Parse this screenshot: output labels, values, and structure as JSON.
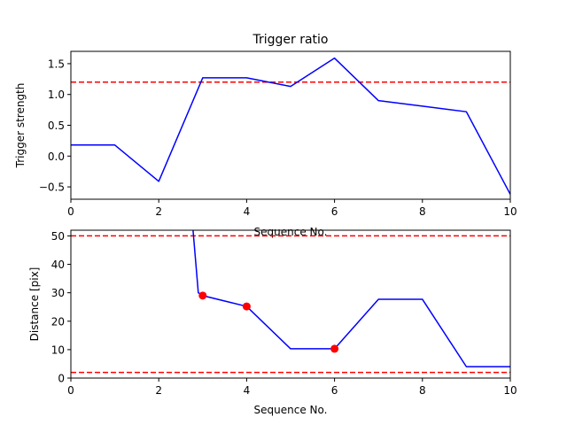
{
  "colors": {
    "line": "#0000ff",
    "threshold": "#ff0000",
    "marker": "#ff0000",
    "axes": "#000000",
    "background": "#ffffff"
  },
  "chart_data": [
    {
      "type": "line",
      "title": "Trigger ratio",
      "xlabel": "Sequence No.",
      "ylabel": "Trigger strength",
      "xlim": [
        0,
        10
      ],
      "ylim": [
        -0.7,
        1.7
      ],
      "xticks": [
        0,
        2,
        4,
        6,
        8,
        10
      ],
      "yticks": [
        -0.5,
        0.0,
        0.5,
        1.0,
        1.5
      ],
      "ytick_labels": [
        "−0.5",
        "0.0",
        "0.5",
        "1.0",
        "1.5"
      ],
      "grid": false,
      "series": [
        {
          "x": [
            0,
            1,
            2,
            3,
            4,
            5,
            6,
            7,
            8,
            9,
            10
          ],
          "y": [
            0.18,
            0.18,
            -0.41,
            1.27,
            1.27,
            1.13,
            1.59,
            0.9,
            0.81,
            0.72,
            -0.62
          ]
        }
      ],
      "hlines": [
        1.2
      ]
    },
    {
      "type": "line",
      "title": "",
      "xlabel": "Sequence No.",
      "ylabel": "Distance [pix]",
      "xlim": [
        0,
        10
      ],
      "ylim": [
        0,
        52
      ],
      "xticks": [
        0,
        2,
        4,
        6,
        8,
        10
      ],
      "yticks": [
        0,
        10,
        20,
        30,
        40,
        50
      ],
      "ytick_labels": [
        "0",
        "10",
        "20",
        "30",
        "40",
        "50"
      ],
      "grid": false,
      "series": [
        {
          "x": [
            2.78,
            2.9,
            3,
            4,
            5,
            6,
            7,
            8,
            9,
            10
          ],
          "y": [
            52,
            30,
            29,
            25.2,
            10.3,
            10.3,
            27.7,
            27.7,
            4,
            4
          ]
        }
      ],
      "markers": {
        "x": [
          3,
          4,
          6
        ],
        "y": [
          29,
          25.2,
          10.3
        ]
      },
      "hlines": [
        50,
        2
      ]
    }
  ]
}
